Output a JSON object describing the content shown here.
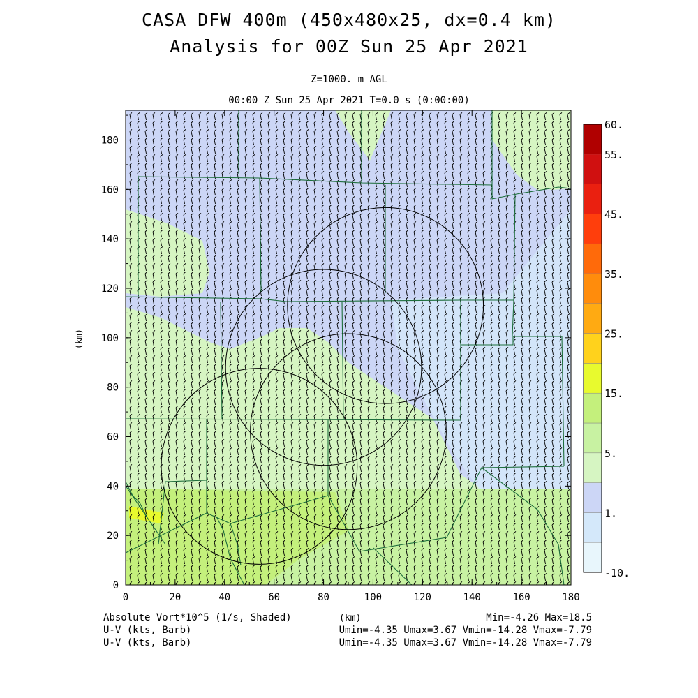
{
  "titles": {
    "line1": "CASA DFW 400m (450x480x25, dx=0.4 km)",
    "line2": "Analysis for 00Z Sun 25 Apr 2021",
    "level": "Z=1000. m AGL",
    "time": "00:00 Z Sun 25 Apr 2021   T=0.0 s (0:00:00)"
  },
  "axes": {
    "ylabel": "(km)",
    "xlabel": "(km)",
    "xlim": [
      0,
      180
    ],
    "ylim": [
      0,
      192
    ],
    "xticks": [
      "0",
      "20",
      "40",
      "60",
      "80",
      "100",
      "120",
      "140",
      "160",
      "180"
    ],
    "yticks": [
      "0",
      "20",
      "40",
      "60",
      "80",
      "100",
      "120",
      "140",
      "160",
      "180"
    ]
  },
  "colorbar": {
    "labels": [
      "60.",
      "55.",
      "45.",
      "35.",
      "25.",
      "15.",
      "5.",
      "1.",
      "-10."
    ],
    "colors": [
      "#e8f6fc",
      "#d4e8fa",
      "#ccd6f6",
      "#d6f5c2",
      "#c8f2a2",
      "#c4f07c",
      "#e8fa2e",
      "#ffd21c",
      "#ffaa12",
      "#ff8c0c",
      "#ff6a0a",
      "#ff3e0c",
      "#ea2010",
      "#d01010",
      "#b00000"
    ]
  },
  "footer": {
    "field1": "Absolute Vort*10^5 (1/s, Shaded)",
    "field2": "U-V (kts, Barb)",
    "field3": "U-V (kts, Barb)",
    "stats1": "Min=-4.26 Max=18.5",
    "stats2": "Umin=-4.35 Umax=3.67 Vmin=-14.28 Vmax=-7.79",
    "stats3": "Umin=-4.35 Umax=3.67 Vmin=-14.28 Vmax=-7.79"
  },
  "radar_rings": [
    {
      "center_km": [
        105,
        113
      ],
      "radius_km": 40
    },
    {
      "center_km": [
        80,
        88
      ],
      "radius_km": 40
    },
    {
      "center_km": [
        90,
        62
      ],
      "radius_km": 40
    },
    {
      "center_km": [
        54,
        48
      ],
      "radius_km": 40
    }
  ]
}
